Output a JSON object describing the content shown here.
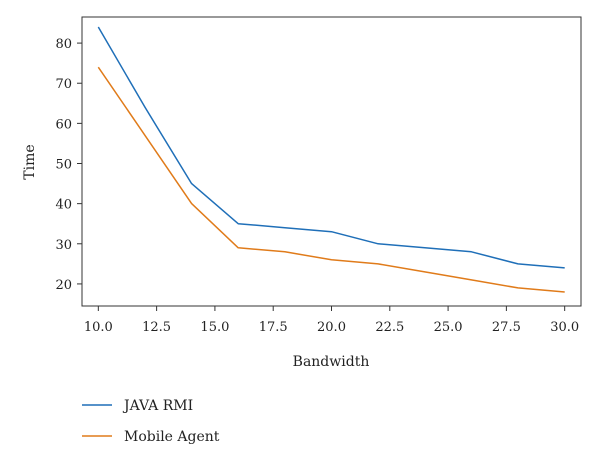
{
  "chart_data": {
    "type": "line",
    "title": "",
    "xlabel": "Bandwidth",
    "ylabel": "Time",
    "xlim": [
      9.3,
      30.7
    ],
    "ylim": [
      14.5,
      86.5
    ],
    "x_ticks": [
      10.0,
      12.5,
      15.0,
      17.5,
      20.0,
      22.5,
      25.0,
      27.5,
      30.0
    ],
    "x_tick_labels": [
      "10.0",
      "12.5",
      "15.0",
      "17.5",
      "20.0",
      "22.5",
      "25.0",
      "27.5",
      "30.0"
    ],
    "y_ticks": [
      20,
      30,
      40,
      50,
      60,
      70,
      80
    ],
    "y_tick_labels": [
      "20",
      "30",
      "40",
      "50",
      "60",
      "70",
      "80"
    ],
    "grid": false,
    "legend_position": "bottom-left, below plot",
    "series": [
      {
        "name": "JAVA RMI",
        "color": "#1f6fb8",
        "x": [
          10,
          12,
          14,
          16,
          18,
          20,
          22,
          24,
          26,
          28,
          30
        ],
        "y": [
          84,
          64,
          45,
          35,
          34,
          33,
          30,
          29,
          28,
          25,
          24
        ]
      },
      {
        "name": "Mobile Agent",
        "color": "#e07b1a",
        "x": [
          10,
          12,
          14,
          16,
          18,
          20,
          22,
          24,
          26,
          28,
          30
        ],
        "y": [
          74,
          57,
          40,
          29,
          28,
          26,
          25,
          23,
          21,
          19,
          18
        ]
      }
    ]
  }
}
